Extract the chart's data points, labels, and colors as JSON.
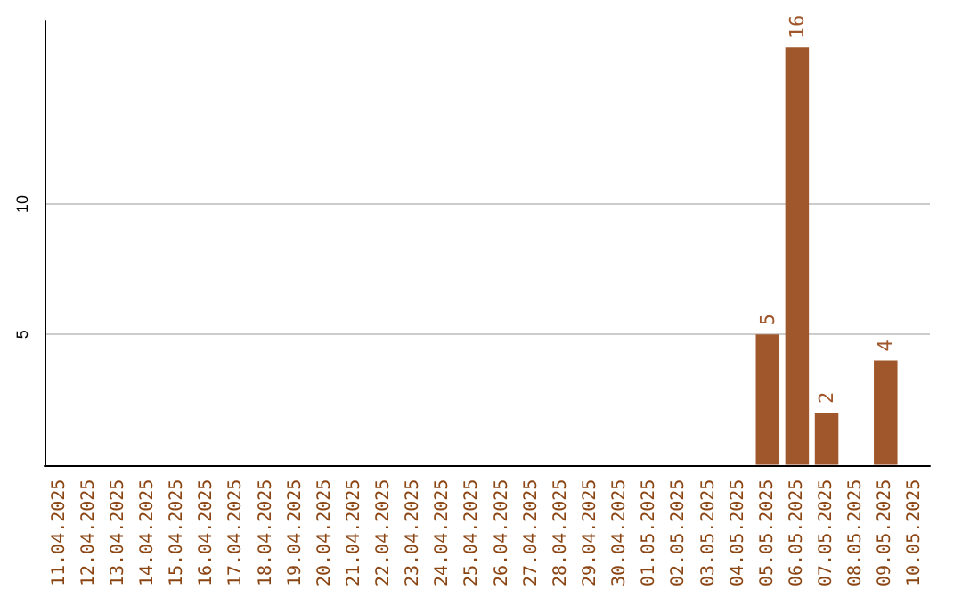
{
  "chart_data": {
    "type": "bar",
    "categories": [
      "11.04.2025",
      "12.04.2025",
      "13.04.2025",
      "14.04.2025",
      "15.04.2025",
      "16.04.2025",
      "17.04.2025",
      "18.04.2025",
      "19.04.2025",
      "20.04.2025",
      "21.04.2025",
      "22.04.2025",
      "23.04.2025",
      "24.04.2025",
      "25.04.2025",
      "26.04.2025",
      "27.04.2025",
      "28.04.2025",
      "29.04.2025",
      "30.04.2025",
      "01.05.2025",
      "02.05.2025",
      "03.05.2025",
      "04.05.2025",
      "05.05.2025",
      "06.05.2025",
      "07.05.2025",
      "08.05.2025",
      "09.05.2025",
      "10.05.2025"
    ],
    "values": [
      null,
      null,
      null,
      null,
      null,
      null,
      null,
      null,
      null,
      null,
      null,
      null,
      null,
      null,
      null,
      null,
      null,
      null,
      null,
      null,
      null,
      null,
      null,
      null,
      5,
      16,
      2,
      null,
      4,
      null
    ],
    "color": "#a0572b",
    "ylim": [
      0,
      17
    ],
    "yticks": [
      5,
      10
    ],
    "grid": "y",
    "data_labels": true
  }
}
